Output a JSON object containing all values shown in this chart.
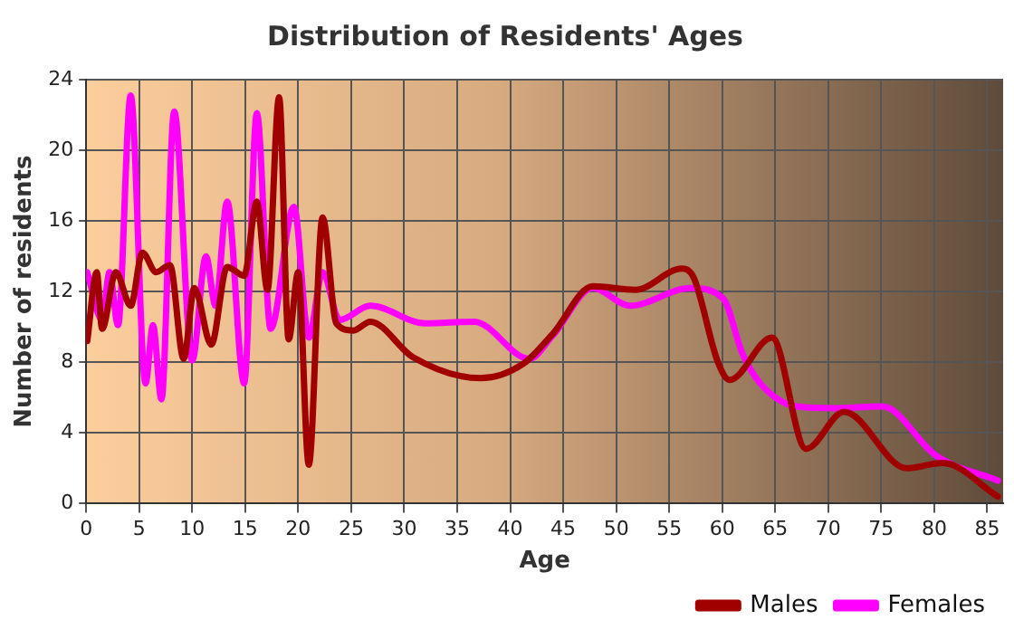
{
  "chart_data": {
    "type": "line",
    "title": "Distribution of Residents' Ages",
    "xlabel": "Age",
    "ylabel": "Number of residents",
    "xlim": [
      0,
      86.5
    ],
    "xticks": [
      0,
      5,
      10,
      15,
      20,
      25,
      30,
      35,
      40,
      45,
      50,
      55,
      60,
      65,
      70,
      75,
      80,
      85
    ],
    "ylim": [
      0,
      24
    ],
    "yticks": [
      0,
      4,
      8,
      12,
      16,
      20,
      24
    ],
    "grid": true,
    "legend": "bottom right",
    "marker": "none",
    "line_style": "solid",
    "series": [
      {
        "name": "Males",
        "color": "#a00000",
        "x": [
          0.1,
          1,
          1.5,
          2.8,
          4.2,
          5.3,
          6.6,
          7.9,
          9.2,
          10.2,
          11.8,
          13.3,
          14.9,
          16.1,
          17.1,
          18.2,
          19.1,
          20,
          21,
          22.3,
          23.6,
          25.2,
          26.8,
          30.8,
          37.2,
          41.2,
          44,
          47.8,
          51.8,
          56.2,
          57.3,
          59.6,
          60.7,
          64.7,
          67.9,
          71.5,
          77.4,
          80.8,
          86
        ],
        "values": [
          9.2,
          13.1,
          9.9,
          13.1,
          11.2,
          14.2,
          13.1,
          13.5,
          8.2,
          12.2,
          9,
          13.4,
          12.9,
          17.1,
          12.1,
          23,
          9.3,
          13.1,
          2.2,
          16.2,
          10.2,
          9.8,
          10.3,
          8.3,
          7.1,
          7.9,
          9.6,
          12.3,
          12.1,
          13.3,
          12.8,
          8,
          7,
          9.4,
          3.1,
          5.2,
          2,
          2.3,
          0.4
        ]
      },
      {
        "name": "Females",
        "color": "#ff00ff",
        "x": [
          0.1,
          1.5,
          2.2,
          3,
          4.2,
          5.6,
          6.3,
          7.1,
          8.3,
          10,
          11.3,
          12.2,
          13.3,
          14.9,
          16.1,
          17.4,
          19.6,
          21,
          22.3,
          23.9,
          26.8,
          32,
          36.6,
          41.8,
          44,
          47.8,
          51.3,
          57,
          60.1,
          61.9,
          63.6,
          67,
          70.5,
          75.1,
          80.2,
          86
        ],
        "values": [
          13.1,
          10.4,
          13.1,
          10.1,
          23.1,
          6.8,
          10.1,
          5.9,
          22.2,
          8.1,
          14,
          11.2,
          17.1,
          6.8,
          22.1,
          9.9,
          16.8,
          9.4,
          13.1,
          10.4,
          11.2,
          10.2,
          10.3,
          8.2,
          9.5,
          12.2,
          11.2,
          12.2,
          11.6,
          8.5,
          6.8,
          5.5,
          5.4,
          5.5,
          2.7,
          1.3
        ]
      }
    ]
  }
}
